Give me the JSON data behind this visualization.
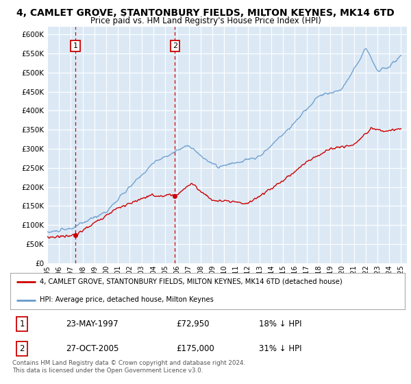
{
  "title": "4, CAMLET GROVE, STANTONBURY FIELDS, MILTON KEYNES, MK14 6TD",
  "subtitle": "Price paid vs. HM Land Registry's House Price Index (HPI)",
  "ylabel_ticks": [
    "£0",
    "£50K",
    "£100K",
    "£150K",
    "£200K",
    "£250K",
    "£300K",
    "£350K",
    "£400K",
    "£450K",
    "£500K",
    "£550K",
    "£600K"
  ],
  "ytick_values": [
    0,
    50000,
    100000,
    150000,
    200000,
    250000,
    300000,
    350000,
    400000,
    450000,
    500000,
    550000,
    600000
  ],
  "ylim": [
    0,
    620000
  ],
  "hpi_color": "#6699cc",
  "price_color": "#cc0000",
  "sale1_date": 1997.38,
  "sale1_price": 72950,
  "sale2_date": 2005.82,
  "sale2_price": 175000,
  "legend_label_price": "4, CAMLET GROVE, STANTONBURY FIELDS, MILTON KEYNES, MK14 6TD (detached house)",
  "legend_label_hpi": "HPI: Average price, detached house, Milton Keynes",
  "table_row1": [
    "1",
    "23-MAY-1997",
    "£72,950",
    "18% ↓ HPI"
  ],
  "table_row2": [
    "2",
    "27-OCT-2005",
    "£175,000",
    "31% ↓ HPI"
  ],
  "footnote": "Contains HM Land Registry data © Crown copyright and database right 2024.\nThis data is licensed under the Open Government Licence v3.0.",
  "plot_bg_color": "#dce9f5",
  "grid_color": "#ffffff"
}
